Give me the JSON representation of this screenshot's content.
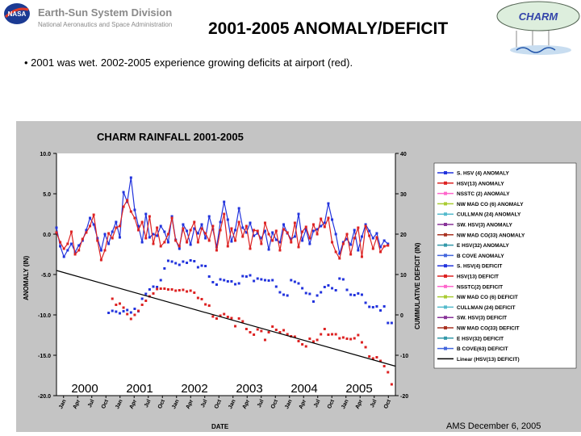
{
  "header": {
    "org": "Earth-Sun System Division",
    "org_sub": "National Aeronautics and Space Administration",
    "title": "2001-2005 ANOMALY/DEFICIT",
    "badge": "CHARM",
    "logo_text": "NASA"
  },
  "bullet": "• 2001 was wet.  2002-2005 experience growing deficits at airport (red).",
  "footer": "AMS  December 6, 2005",
  "colors": {
    "blue": "#2233dd",
    "red": "#dd2222",
    "trend": "#000000"
  },
  "chart_data": {
    "type": "line",
    "title": "CHARM RAINFALL 2001-2005",
    "xlabel": "DATE",
    "ylabel": "ANOMALY (IN)",
    "y2label": "CUMMULATIVE DEFICIT (IN)",
    "ylim": [
      -20,
      10
    ],
    "y2lim": [
      -20,
      40
    ],
    "yticks": [
      "10.0",
      "5.0",
      "0.0",
      "-5.0",
      "-10.0",
      "-15.0",
      "-20.0"
    ],
    "y2ticks": [
      "40",
      "30",
      "20",
      "10",
      "0",
      "-10",
      "-20"
    ],
    "month_ticks": [
      "Jan",
      "Apr",
      "Jul",
      "Oct",
      "Jan",
      "Apr",
      "Jul",
      "Oct",
      "Jan",
      "Apr",
      "Jul",
      "Oct",
      "Jan",
      "Apr",
      "Jul",
      "Oct",
      "Jan",
      "Apr",
      "Jul",
      "Oct",
      "Jan",
      "Apr",
      "Jul",
      "Oct"
    ],
    "year_labels": [
      "2000",
      "2001",
      "2002",
      "2003",
      "2004",
      "2005"
    ],
    "grid": false,
    "legend_position": "right",
    "legend": [
      "S. HSV (4) ANOMALY",
      "HSV(13) ANOMALY",
      "NSSTC (2) ANOMALY",
      "NW MAD CO (6) ANOMALY",
      "CULLMAN (24) ANOMALY",
      "SW. HSV(3) ANOMALY",
      "NW MAD CO(33) ANOMALY",
      "E HSV(32) ANOMALY",
      "B COVE ANOMALY",
      "S. HSV(4) DEFICIT",
      "HSV(13) DEFICIT",
      "NSSTC(2) DEFICIT",
      "NW MAD CO (6) DEFICIT",
      "CULLMAN (24) DEFICIT",
      "SW. HSV(3) DEFICIT",
      "NW MAD CO(33) DEFICIT",
      "E HSV(32) DEFICIT",
      "B COVE(63) DEFICIT",
      "Linear  (HSV(13) DEFICIT)"
    ],
    "legend_colors": [
      "#2233dd",
      "#dd2222",
      "#ff66cc",
      "#aacc33",
      "#55bbcc",
      "#883399",
      "#aa3322",
      "#3399aa",
      "#4466dd",
      "#2233dd",
      "#dd2222",
      "#ff66cc",
      "#aacc33",
      "#55bbcc",
      "#883399",
      "#aa3322",
      "#3399aa",
      "#4466dd",
      "#000000"
    ],
    "series": [
      {
        "name": "S. HSV (4) ANOMALY",
        "axis": "left",
        "color": "#2233dd",
        "values": [
          0.8,
          -1.5,
          -2.8,
          -2.0,
          -1.2,
          -2.2,
          -1.4,
          -0.8,
          0.5,
          2.0,
          1.2,
          -0.5,
          -2.0,
          0.0,
          -1.2,
          0.3,
          1.5,
          -0.4,
          5.2,
          4.0,
          7.0,
          3.0,
          1.0,
          -1.0,
          2.5,
          -0.4,
          0.0,
          -0.2,
          1.0,
          0.3,
          -1.0,
          2.2,
          -0.7,
          -1.8,
          1.2,
          0.4,
          -1.3,
          0.7,
          0.1,
          1.2,
          -0.5,
          2.2,
          0.6,
          -1.6,
          1.5,
          4.0,
          1.8,
          -0.9,
          0.5,
          3.2,
          0.8,
          0.2,
          1.4,
          -0.2,
          0.1,
          -0.5,
          0.4,
          -1.9,
          0.2,
          -0.7,
          -1.0,
          1.2,
          0.1,
          -0.6,
          -0.3,
          2.5,
          -0.8,
          0.6,
          -1.2,
          0.4,
          0.6,
          1.0,
          1.4,
          3.8,
          1.8,
          0.0,
          -2.4,
          -1.0,
          -0.6,
          -1.3,
          0.5,
          -2.0,
          -0.3,
          1.2,
          0.4,
          -0.5,
          0.1,
          -1.6,
          -0.8,
          -1.2
        ]
      },
      {
        "name": "HSV(13) ANOMALY",
        "axis": "left",
        "color": "#dd2222",
        "values": [
          0.2,
          -1.0,
          -1.8,
          -1.2,
          0.3,
          -2.5,
          -2.0,
          -0.6,
          0.2,
          1.0,
          2.4,
          -0.8,
          -3.2,
          -2.0,
          0.1,
          -0.5,
          0.8,
          1.0,
          3.4,
          4.2,
          2.8,
          2.0,
          0.5,
          1.5,
          -0.5,
          2.2,
          -1.2,
          0.8,
          -1.5,
          -1.0,
          0.0,
          2.0,
          -0.8,
          -1.5,
          0.7,
          -1.0,
          0.5,
          1.5,
          -1.0,
          0.7,
          0.1,
          -0.8,
          1.0,
          -2.0,
          0.5,
          2.5,
          -1.5,
          0.7,
          -0.8,
          1.5,
          -0.3,
          1.0,
          -1.8,
          0.5,
          0.4,
          -1.2,
          1.4,
          0.0,
          -0.8,
          0.4,
          -2.0,
          0.6,
          0.2,
          -1.0,
          1.4,
          -1.6,
          0.3,
          0.9,
          -0.5,
          1.2,
          0.0,
          1.9,
          0.9,
          2.0,
          -1.0,
          -2.2,
          -3.0,
          -1.2,
          0.0,
          -2.5,
          -0.5,
          0.8,
          -2.8,
          1.0,
          -0.2,
          -1.8,
          -0.4,
          -2.2,
          -1.5,
          -1.4
        ]
      },
      {
        "name": "S. HSV(4) DEFICIT",
        "axis": "right",
        "color": "#2233dd",
        "values": [
          null,
          null,
          null,
          null,
          null,
          null,
          null,
          null,
          null,
          null,
          null,
          null,
          null,
          null,
          0.5,
          1.0,
          0.8,
          0.4,
          0.9,
          1.2,
          0.6,
          1.5,
          0.9,
          4.0,
          5.2,
          6.3,
          7.0,
          6.9,
          8.6,
          11.5,
          13.4,
          13.2,
          12.8,
          12.4,
          13.2,
          12.9,
          13.5,
          13.3,
          11.8,
          12.2,
          12.1,
          9.5,
          8.1,
          7.5,
          8.8,
          8.6,
          8.3,
          8.3,
          7.6,
          7.8,
          9.6,
          9.5,
          9.8,
          8.4,
          9.0,
          8.8,
          8.6,
          8.5,
          8.6,
          7.0,
          5.6,
          5.0,
          4.8,
          8.6,
          8.2,
          7.8,
          6.6,
          5.4,
          5.2,
          3.3,
          4.8,
          5.6,
          6.9,
          7.3,
          6.6,
          6.1,
          9.0,
          8.8,
          6.2,
          5.0,
          4.9,
          5.3,
          5.0,
          3.0,
          2.0,
          1.9,
          2.1,
          1.1,
          2.1,
          -2.0,
          -2.0
        ]
      },
      {
        "name": "HSV(13) DEFICIT",
        "axis": "right",
        "color": "#dd2222",
        "values": [
          null,
          null,
          null,
          null,
          null,
          null,
          null,
          null,
          null,
          null,
          null,
          null,
          null,
          null,
          null,
          4.0,
          2.5,
          2.8,
          1.8,
          0.2,
          -1.0,
          0.0,
          1.0,
          2.5,
          3.5,
          4.6,
          5.3,
          6.4,
          6.5,
          6.5,
          6.3,
          6.3,
          6.0,
          6.1,
          6.2,
          5.8,
          6.0,
          5.5,
          4.2,
          3.9,
          2.6,
          2.3,
          -0.4,
          -0.9,
          -0.2,
          0.2,
          -0.5,
          -0.8,
          -2.8,
          -0.9,
          -1.6,
          -3.5,
          -4.3,
          -4.9,
          -3.6,
          -4.0,
          -6.2,
          -4.3,
          -2.9,
          -3.7,
          -4.3,
          -3.8,
          -4.8,
          -5.3,
          -5.4,
          -6.5,
          -7.3,
          -7.8,
          -5.9,
          -6.6,
          -6.2,
          -4.8,
          -3.5,
          -4.9,
          -4.8,
          -4.8,
          -5.8,
          -5.6,
          -5.9,
          -6.0,
          -5.8,
          -5.0,
          -6.8,
          -8.0,
          -10.3,
          -10.8,
          -10.5,
          -11.4,
          -12.7,
          -14.2,
          -17.2
        ]
      },
      {
        "name": "Linear  (HSV(13) DEFICIT)",
        "axis": "right",
        "color": "#000000",
        "x": [
          1,
          92
        ],
        "values": [
          11.0,
          -12.7
        ]
      }
    ]
  }
}
